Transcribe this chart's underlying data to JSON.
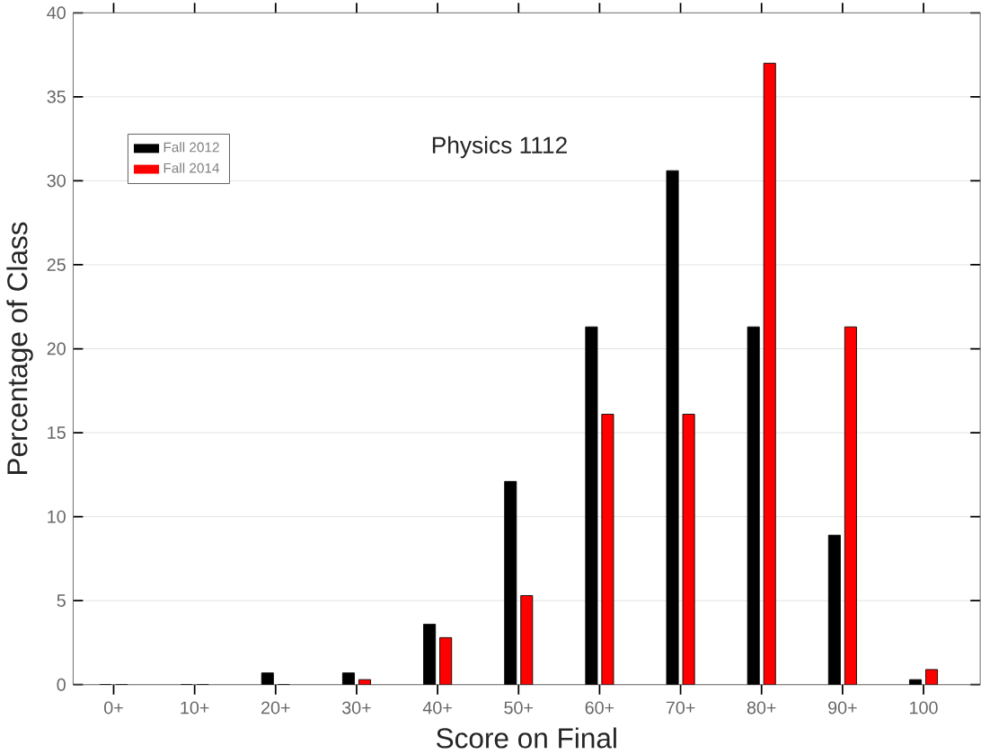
{
  "chart_data": {
    "type": "bar",
    "title": "Physics 1112",
    "xlabel": "Score on Final",
    "ylabel": "Percentage of Class",
    "categories": [
      "0+",
      "10+",
      "20+",
      "30+",
      "40+",
      "50+",
      "60+",
      "70+",
      "80+",
      "90+",
      "100"
    ],
    "series": [
      {
        "name": "Fall 2012",
        "color": "#000000",
        "values": [
          0,
          0,
          0.7,
          0.7,
          3.6,
          12.1,
          21.3,
          30.6,
          21.3,
          8.9,
          0.3
        ]
      },
      {
        "name": "Fall 2014",
        "color": "#ff0000",
        "values": [
          0,
          0,
          0,
          0.3,
          2.8,
          5.3,
          16.1,
          16.1,
          37.0,
          21.3,
          0.9
        ]
      }
    ],
    "ylim": [
      0,
      40
    ],
    "yticks": [
      0,
      5,
      10,
      15,
      20,
      25,
      30,
      35,
      40
    ],
    "grid": "y",
    "legend": "top left"
  }
}
